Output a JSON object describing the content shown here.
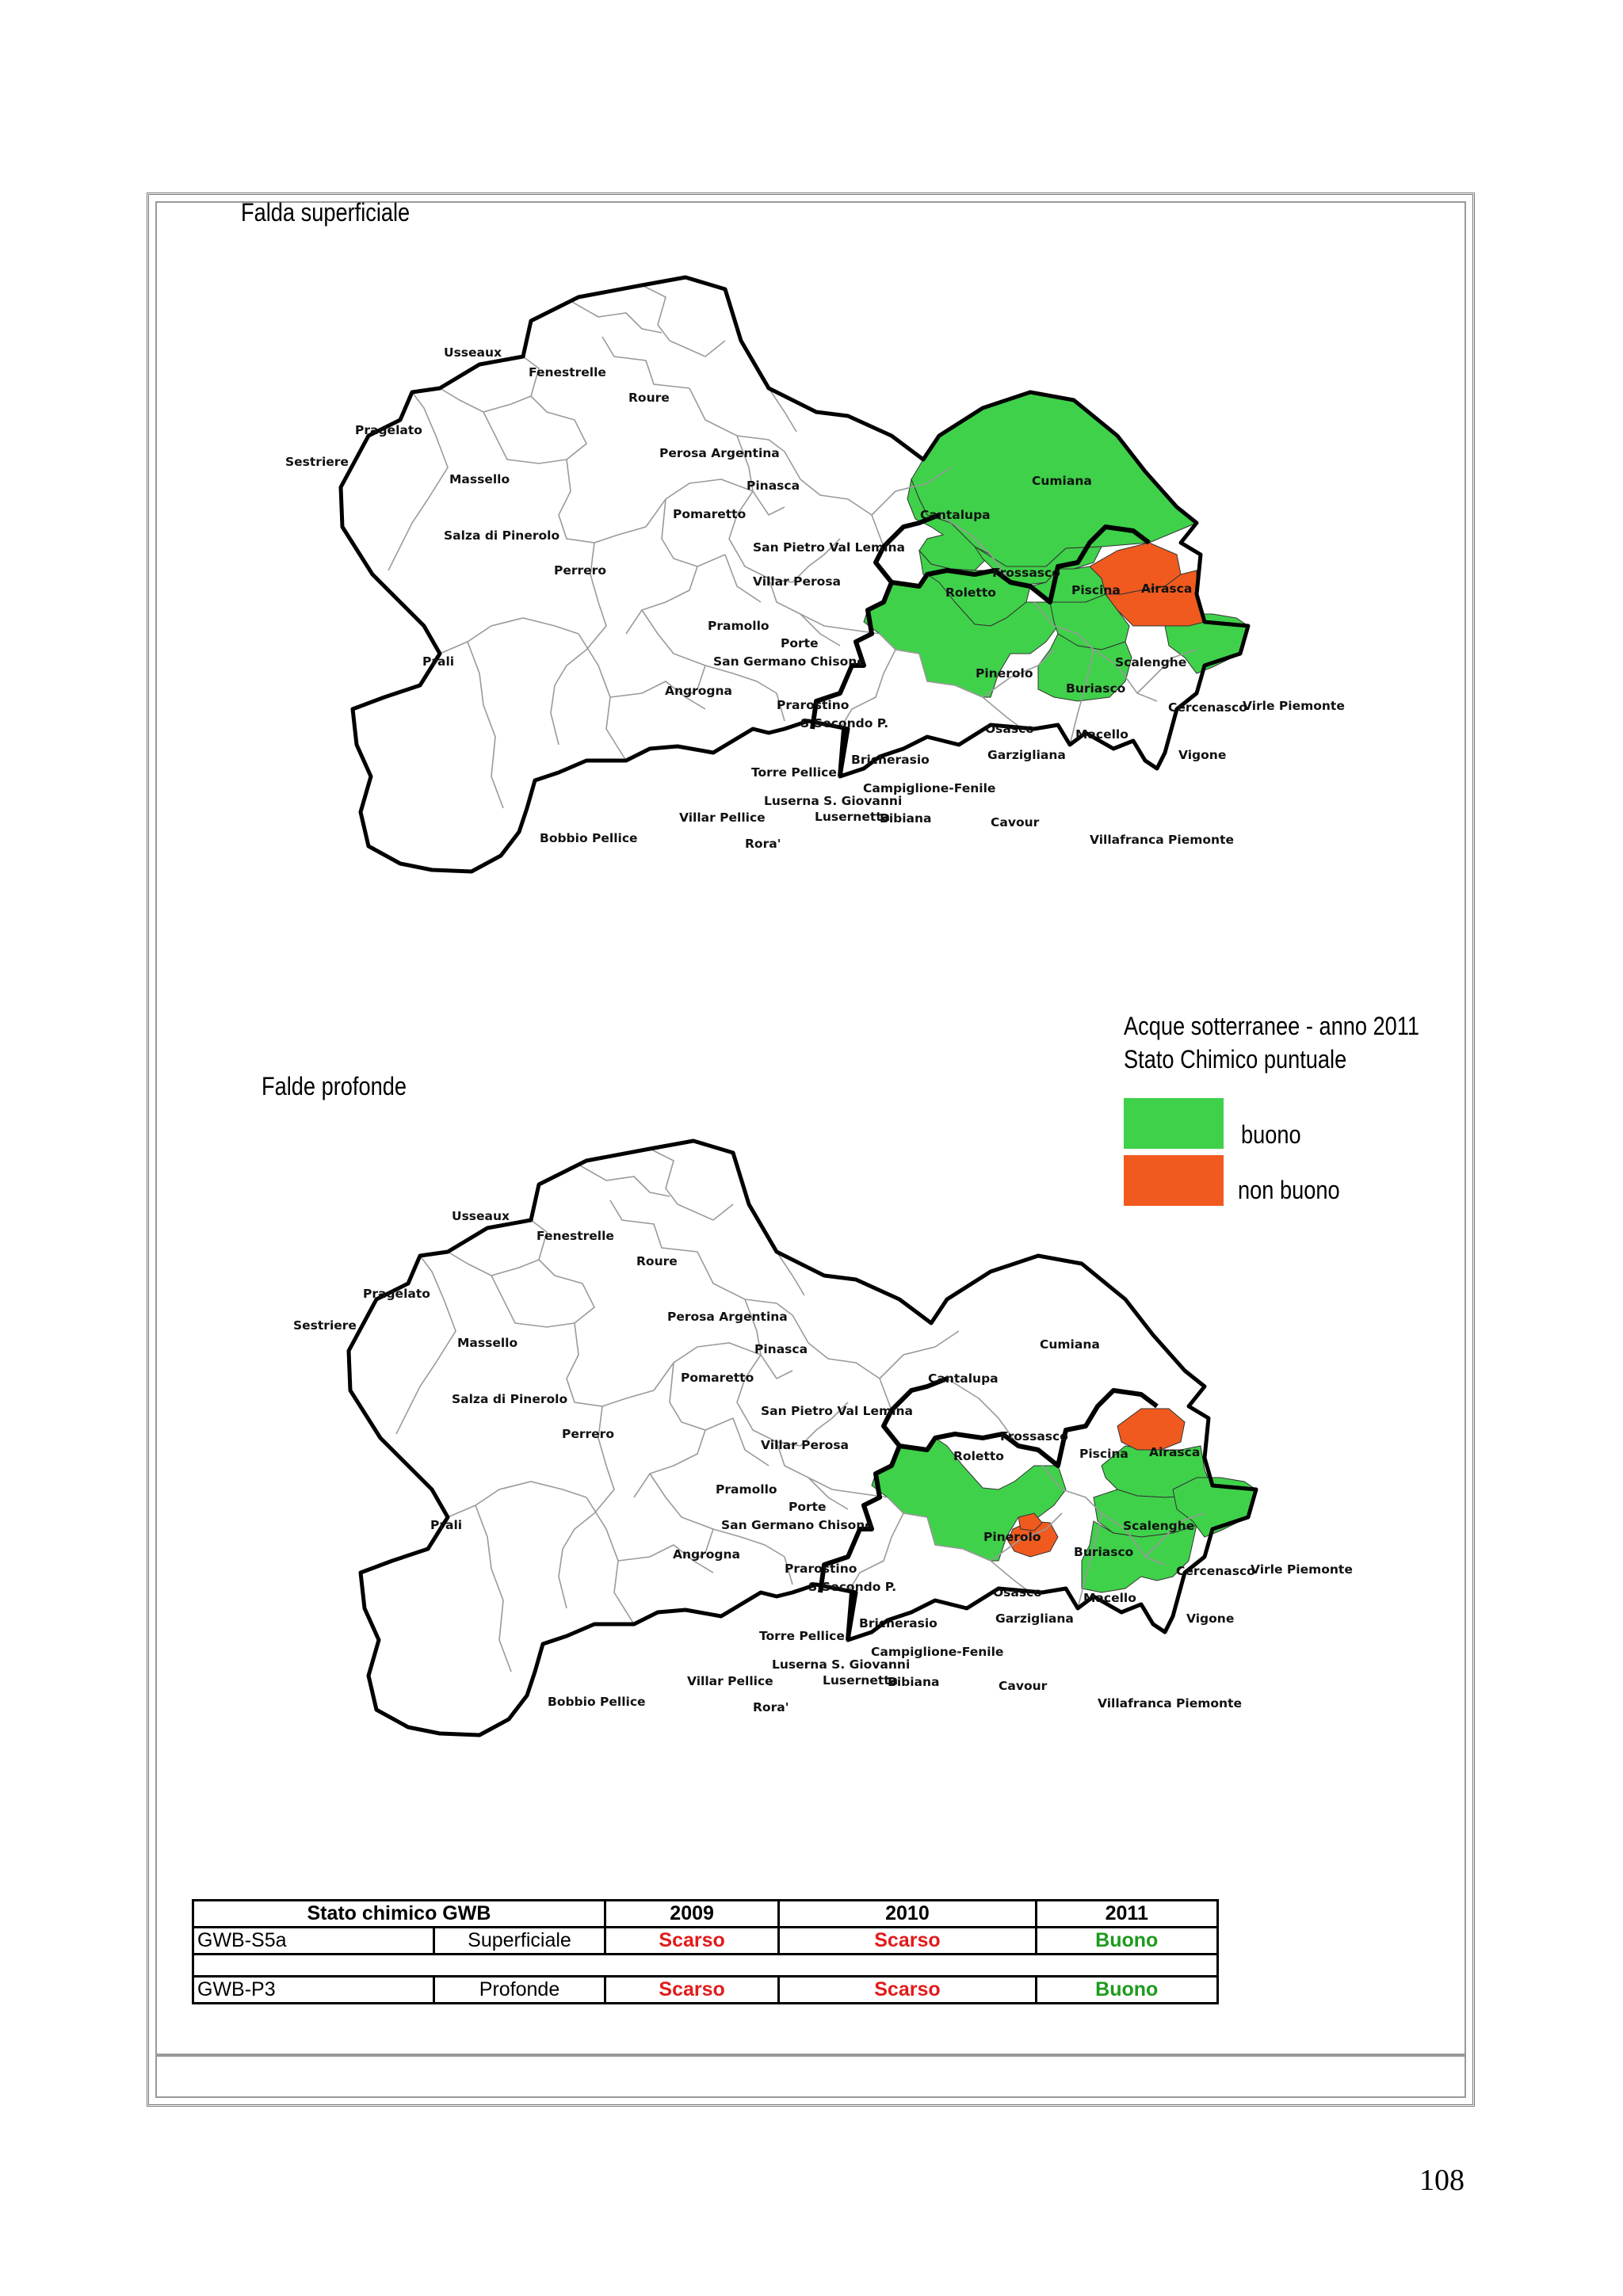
{
  "colors": {
    "buono": "#3fd14a",
    "non_buono": "#f05a1e",
    "scarso": "#e21b1b",
    "buono_text": "#1d9b1d"
  },
  "maps": [
    {
      "title": "Falda superficiale",
      "places": [
        "Usseaux",
        "Fenestrelle",
        "Roure",
        "Pragelato",
        "Sestriere",
        "Massello",
        "Perosa Argentina",
        "Pinasca",
        "Cumiana",
        "Cantalupa",
        "Pomaretto",
        "Salza di Pinerolo",
        "San Pietro Val Lemina",
        "Perrero",
        "Villar Perosa",
        "Frossasco",
        "Airasca",
        "Roletto",
        "Piscina",
        "Pramollo",
        "Porte",
        "Prali",
        "San Germano Chisone",
        "Pinerolo",
        "Scalenghe",
        "Buriasco",
        "Angrogna",
        "Prarostino",
        "Cercenasco",
        "Virle Piemonte",
        "S.Secondo P.",
        "Osasco",
        "Macello",
        "Bricherasio",
        "Garzigliana",
        "Vigone",
        "Torre Pellice",
        "Campiglione-Fenile",
        "Luserna S. Giovanni",
        "Villar Pellice",
        "Lusernetta",
        "Bibiana",
        "Cavour",
        "Bobbio Pellice",
        "Rora'",
        "Villafranca Piemonte"
      ],
      "status": {
        "buono": [
          "Cumiana",
          "Cantalupa",
          "Frossasco",
          "Roletto",
          "Piscina",
          "Pinerolo",
          "Buriasco",
          "Macello",
          "Virle Piemonte"
        ],
        "non_buono": [
          "Airasca",
          "Scalenghe"
        ]
      }
    },
    {
      "title": "Falde profonde",
      "places": [
        "Usseaux",
        "Fenestrelle",
        "Roure",
        "Pragelato",
        "Sestriere",
        "Massello",
        "Perosa Argentina",
        "Pinasca",
        "Cumiana",
        "Cantalupa",
        "Pomaretto",
        "Salza di Pinerolo",
        "San Pietro Val Lemina",
        "Perrero",
        "Villar Perosa",
        "Frossasco",
        "Airasca",
        "Roletto",
        "Piscina",
        "Pramollo",
        "Porte",
        "Prali",
        "San Germano Chisone",
        "Pinerolo",
        "Scalenghe",
        "Buriasco",
        "Angrogna",
        "Prarostino",
        "Cercenasco",
        "Virle Piemonte",
        "S.Secondo P.",
        "Osasco",
        "Macello",
        "Bricherasio",
        "Garzigliana",
        "Vigone",
        "Torre Pellice",
        "Campiglione-Fenile",
        "Luserna S. Giovanni",
        "Villar Pellice",
        "Lusernetta",
        "Bibiana",
        "Cavour",
        "Bobbio Pellice",
        "Rora'",
        "Villafranca Piemonte"
      ],
      "status": {
        "buono": [
          "Pinerolo",
          "Scalenghe",
          "Cercenasco",
          "Vigone",
          "Virle Piemonte"
        ],
        "non_buono": [
          "Airasca",
          "Garzigliana",
          "Osasco"
        ]
      }
    }
  ],
  "legend": {
    "title_line1": "Acque sotterranee - anno 2011",
    "title_line2": "Stato Chimico puntuale",
    "buono": "buono",
    "non_buono": "non buono"
  },
  "table": {
    "header": [
      "Stato chimico GWB",
      "2009",
      "2010",
      "2011"
    ],
    "rows": [
      {
        "code": "GWB-S5a",
        "type": "Superficiale",
        "values": [
          "Scarso",
          "Scarso",
          "Buono"
        ]
      },
      {
        "code": "GWB-P3",
        "type": "Profonde",
        "values": [
          "Scarso",
          "Scarso",
          "Buono"
        ]
      }
    ]
  },
  "page_number": "108"
}
